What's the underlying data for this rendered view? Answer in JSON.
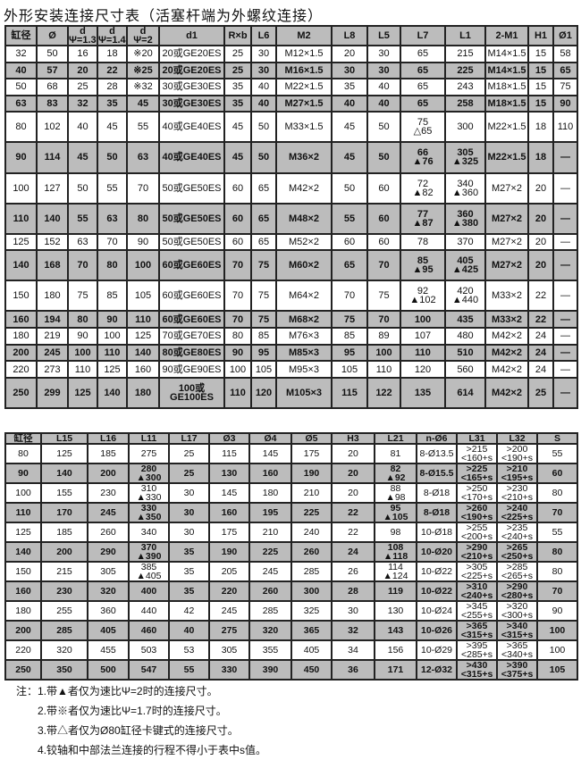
{
  "title": "外形安装连接尺寸表（活塞杆端为外螺纹连接）",
  "colors": {
    "header_bg": "#bcbcbc",
    "shaded_row_bg": "#bcbcbc",
    "border": "#222222"
  },
  "table1": {
    "headers": [
      "缸径",
      "Ø",
      "d\nΨ=1.33",
      "d\nΨ=1.46",
      "d\nΨ=2",
      "d1",
      "R×b",
      "L6",
      "M2",
      "L8",
      "L5",
      "L7",
      "L1",
      "2-M1",
      "H1",
      "Ø1"
    ],
    "rows": [
      [
        "32",
        "50",
        "16",
        "18",
        "※20",
        "20或GE20ES",
        "25",
        "30",
        "M12×1.5",
        "20",
        "30",
        "65",
        "215",
        "M14×1.5",
        "15",
        "58"
      ],
      [
        "40",
        "57",
        "20",
        "22",
        "※25",
        "20或GE20ES",
        "25",
        "30",
        "M16×1.5",
        "30",
        "30",
        "65",
        "225",
        "M14×1.5",
        "15",
        "65"
      ],
      [
        "50",
        "68",
        "25",
        "28",
        "※32",
        "30或GE30ES",
        "35",
        "40",
        "M22×1.5",
        "35",
        "40",
        "65",
        "243",
        "M18×1.5",
        "15",
        "75"
      ],
      [
        "63",
        "83",
        "32",
        "35",
        "45",
        "30或GE30ES",
        "35",
        "40",
        "M27×1.5",
        "40",
        "40",
        "65",
        "258",
        "M18×1.5",
        "15",
        "90"
      ],
      [
        "80",
        "102",
        "40",
        "45",
        "55",
        "40或GE40ES",
        "45",
        "50",
        "M33×1.5",
        "45",
        "50",
        "75\n△65",
        "300",
        "M22×1.5",
        "18",
        "110"
      ],
      [
        "90",
        "114",
        "45",
        "50",
        "63",
        "40或GE40ES",
        "45",
        "50",
        "M36×2",
        "45",
        "50",
        "66\n▲76",
        "305\n▲325",
        "M22×1.5",
        "18",
        "—"
      ],
      [
        "100",
        "127",
        "50",
        "55",
        "70",
        "50或GE50ES",
        "60",
        "65",
        "M42×2",
        "50",
        "60",
        "72\n▲82",
        "340\n▲360",
        "M27×2",
        "20",
        "—"
      ],
      [
        "110",
        "140",
        "55",
        "63",
        "80",
        "50或GE50ES",
        "60",
        "65",
        "M48×2",
        "55",
        "60",
        "77\n▲87",
        "360\n▲380",
        "M27×2",
        "20",
        "—"
      ],
      [
        "125",
        "152",
        "63",
        "70",
        "90",
        "50或GE50ES",
        "60",
        "65",
        "M52×2",
        "60",
        "60",
        "78",
        "370",
        "M27×2",
        "20",
        "—"
      ],
      [
        "140",
        "168",
        "70",
        "80",
        "100",
        "60或GE60ES",
        "70",
        "75",
        "M60×2",
        "65",
        "70",
        "85\n▲95",
        "405\n▲425",
        "M27×2",
        "20",
        "—"
      ],
      [
        "150",
        "180",
        "75",
        "85",
        "105",
        "60或GE60ES",
        "70",
        "75",
        "M64×2",
        "70",
        "75",
        "92\n▲102",
        "420\n▲440",
        "M33×2",
        "22",
        "—"
      ],
      [
        "160",
        "194",
        "80",
        "90",
        "110",
        "60或GE60ES",
        "70",
        "75",
        "M68×2",
        "75",
        "70",
        "100",
        "435",
        "M33×2",
        "22",
        "—"
      ],
      [
        "180",
        "219",
        "90",
        "100",
        "125",
        "70或GE70ES",
        "80",
        "85",
        "M76×3",
        "85",
        "89",
        "107",
        "480",
        "M42×2",
        "24",
        "—"
      ],
      [
        "200",
        "245",
        "100",
        "110",
        "140",
        "80或GE80ES",
        "90",
        "95",
        "M85×3",
        "95",
        "100",
        "110",
        "510",
        "M42×2",
        "24",
        "—"
      ],
      [
        "220",
        "273",
        "110",
        "125",
        "160",
        "90或GE90ES",
        "100",
        "105",
        "M95×3",
        "105",
        "110",
        "120",
        "560",
        "M42×2",
        "24",
        "—"
      ],
      [
        "250",
        "299",
        "125",
        "140",
        "180",
        "100或GE100ES",
        "110",
        "120",
        "M105×3",
        "115",
        "122",
        "135",
        "614",
        "M42×2",
        "25",
        "—"
      ]
    ]
  },
  "table2": {
    "headers": [
      "缸径",
      "L15",
      "L16",
      "L11",
      "L17",
      "Ø3",
      "Ø4",
      "Ø5",
      "H3",
      "L21",
      "n-Ø6",
      "L31",
      "L32",
      "S"
    ],
    "rows": [
      [
        "80",
        "125",
        "185",
        "275",
        "25",
        "115",
        "145",
        "175",
        "20",
        "81",
        "8-Ø13.5",
        ">215\n<160+s",
        ">200\n<190+s",
        "55"
      ],
      [
        "90",
        "140",
        "200",
        "280\n▲300",
        "25",
        "130",
        "160",
        "190",
        "20",
        "82\n▲92",
        "8-Ø15.5",
        ">225\n<165+s",
        ">210\n<195+s",
        "60"
      ],
      [
        "100",
        "155",
        "230",
        "310\n▲330",
        "30",
        "145",
        "180",
        "210",
        "20",
        "88\n▲98",
        "8-Ø18",
        ">250\n<170+s",
        ">230\n<210+s",
        "80"
      ],
      [
        "110",
        "170",
        "245",
        "330\n▲350",
        "30",
        "160",
        "195",
        "225",
        "22",
        "95\n▲105",
        "8-Ø18",
        ">260\n<190+s",
        ">240\n<225+s",
        "70"
      ],
      [
        "125",
        "185",
        "260",
        "340",
        "30",
        "175",
        "210",
        "240",
        "22",
        "98",
        "10-Ø18",
        ">255\n<200+s",
        ">235\n<240+s",
        "55"
      ],
      [
        "140",
        "200",
        "290",
        "370\n▲390",
        "35",
        "190",
        "225",
        "260",
        "24",
        "108\n▲118",
        "10-Ø20",
        ">290\n<210+s",
        ">265\n<250+s",
        "80"
      ],
      [
        "150",
        "215",
        "305",
        "385\n▲405",
        "35",
        "205",
        "245",
        "285",
        "26",
        "114\n▲124",
        "10-Ø22",
        ">305\n<225+s",
        ">285\n<265+s",
        "80"
      ],
      [
        "160",
        "230",
        "320",
        "400",
        "35",
        "220",
        "260",
        "300",
        "28",
        "119",
        "10-Ø22",
        ">310\n<240+s",
        ">290\n<280+s",
        "70"
      ],
      [
        "180",
        "255",
        "360",
        "440",
        "42",
        "245",
        "285",
        "325",
        "30",
        "130",
        "10-Ø24",
        ">345\n<255+s",
        ">320\n<300+s",
        "90"
      ],
      [
        "200",
        "285",
        "405",
        "460",
        "40",
        "275",
        "320",
        "365",
        "32",
        "143",
        "10-Ø26",
        ">365\n<315+s",
        ">340\n<315+s",
        "100"
      ],
      [
        "220",
        "320",
        "455",
        "503",
        "53",
        "305",
        "355",
        "405",
        "34",
        "156",
        "10-Ø29",
        ">395\n<285+s",
        ">365\n<340+s",
        "100"
      ],
      [
        "250",
        "350",
        "500",
        "547",
        "55",
        "330",
        "390",
        "450",
        "36",
        "171",
        "12-Ø32",
        ">430\n<315+s",
        ">390\n<375+s",
        "105"
      ]
    ]
  },
  "notes": [
    "注：1.带▲者仅为速比Ψ=2时的连接尺寸。",
    "2.带※者仅为速比Ψ=1.7时的连接尺寸。",
    "3.带△者仅为Ø80缸径卡键式的连接尺寸。",
    "4.铰轴和中部法兰连接的行程不得小于表中s值。"
  ]
}
